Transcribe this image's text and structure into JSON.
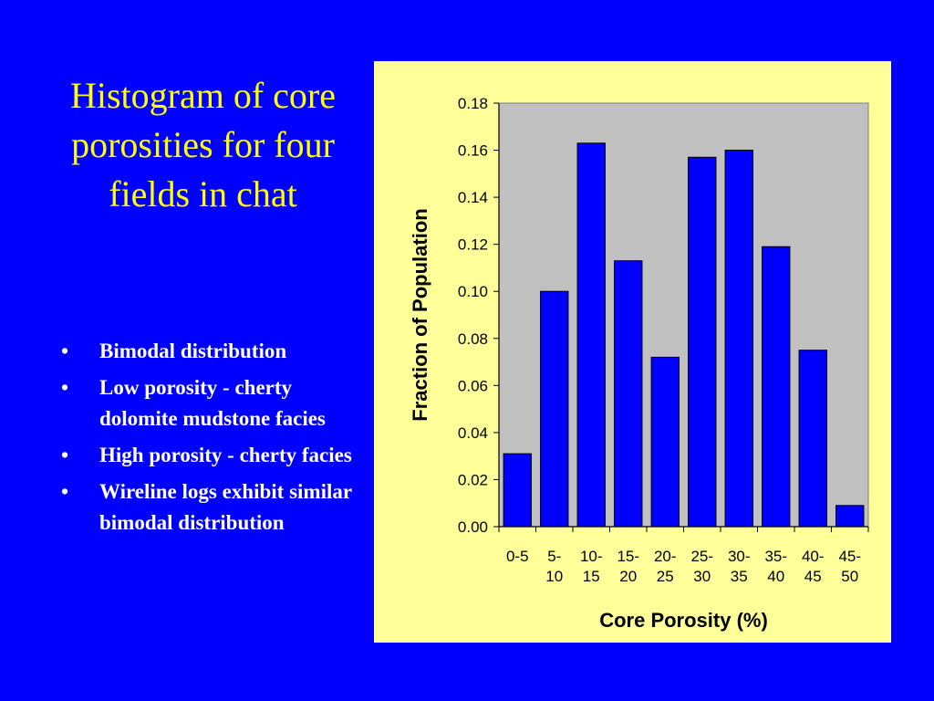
{
  "slide": {
    "title": "Histogram of core porosities for four fields in chat",
    "bullets": [
      "Bimodal distribution",
      "Low porosity - cherty dolomite mudstone facies",
      "High porosity - cherty facies",
      "Wireline logs exhibit similar bimodal distribution"
    ],
    "bullet_symbol": "•",
    "colors": {
      "background": "#0000ff",
      "title": "#ffff00",
      "bullets": "#ffffff",
      "panel": "#ffff99",
      "plot_area": "#c0c0c0",
      "bars": "#0000ff"
    }
  },
  "chart_data": {
    "type": "bar",
    "categories": [
      [
        "0-5"
      ],
      [
        "5-",
        "10"
      ],
      [
        "10-",
        "15"
      ],
      [
        "15-",
        "20"
      ],
      [
        "20-",
        "25"
      ],
      [
        "25-",
        "30"
      ],
      [
        "30-",
        "35"
      ],
      [
        "35-",
        "40"
      ],
      [
        "40-",
        "45"
      ],
      [
        "45-",
        "50"
      ]
    ],
    "values": [
      0.031,
      0.1,
      0.163,
      0.113,
      0.072,
      0.157,
      0.16,
      0.119,
      0.075,
      0.009
    ],
    "xlabel": "Core Porosity (%)",
    "ylabel": "Fraction of Population",
    "ylim": [
      0,
      0.18
    ],
    "yticks": [
      "0.00",
      "0.02",
      "0.04",
      "0.06",
      "0.08",
      "0.10",
      "0.12",
      "0.14",
      "0.16",
      "0.18"
    ],
    "grid": false,
    "legend": "none"
  }
}
